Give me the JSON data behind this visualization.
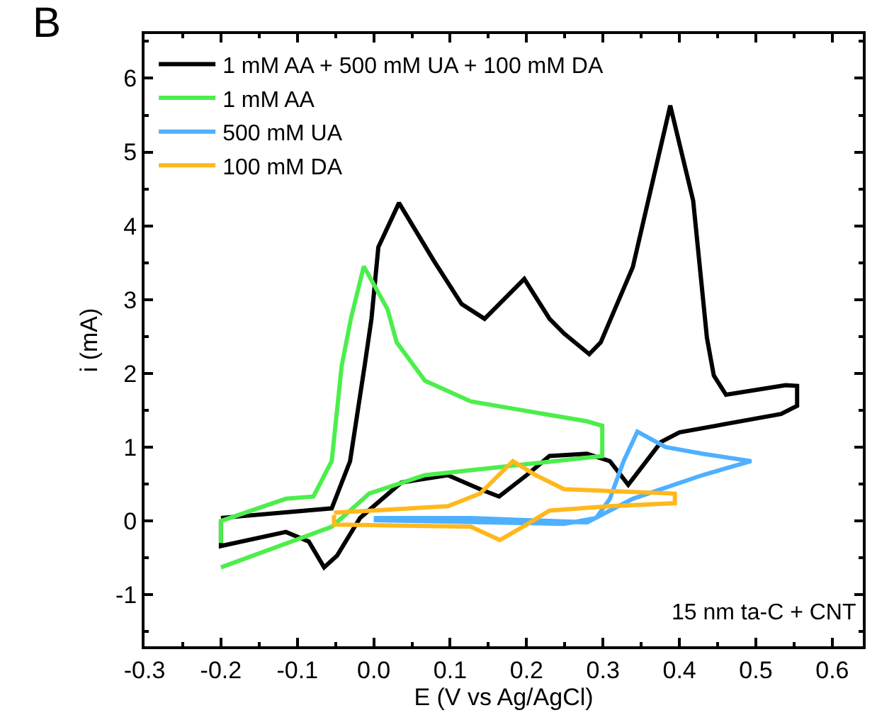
{
  "chart_data": {
    "type": "line",
    "xlabel": "E (V vs Ag/AgCl)",
    "ylabel": "i (mA)",
    "annotations": [
      "B",
      "15 nm ta-C + CNT"
    ],
    "xlim": [
      -0.3,
      0.64
    ],
    "ylim": [
      -1.7,
      6.6
    ],
    "xticks": [
      -0.3,
      -0.2,
      -0.1,
      {
        "value": 0,
        "label": "0.0"
      },
      0.1,
      0.2,
      0.3,
      0.4,
      0.5,
      0.6
    ],
    "yticks": [
      -1,
      0,
      1,
      2,
      3,
      4,
      5,
      6
    ],
    "legend": "top left",
    "marker": "none",
    "line_style": "solid",
    "series": [
      {
        "name": "1 mM AA + 500 mM UA + 100 mM DA",
        "color": "#000000",
        "x": [
          -0.2,
          -0.055,
          -0.031,
          -0.012,
          -0.003,
          0.006,
          0.033,
          0.079,
          0.115,
          0.145,
          0.197,
          0.23,
          0.249,
          0.282,
          0.297,
          0.339,
          0.388,
          0.418,
          0.436,
          0.445,
          0.461,
          0.539,
          0.554,
          0.554,
          0.533,
          0.4,
          0.376,
          0.333,
          0.309,
          0.279,
          0.23,
          0.2,
          0.164,
          0.139,
          0.097,
          0.036,
          -0.018,
          -0.048,
          -0.065,
          -0.085,
          -0.115,
          -0.2,
          -0.2
        ],
        "values": [
          0.04,
          0.17,
          0.81,
          2.1,
          2.74,
          3.71,
          4.31,
          3.52,
          2.94,
          2.74,
          3.28,
          2.74,
          2.54,
          2.26,
          2.42,
          3.44,
          5.63,
          4.34,
          2.48,
          1.97,
          1.71,
          1.84,
          1.83,
          1.56,
          1.45,
          1.2,
          1.07,
          0.49,
          0.81,
          0.91,
          0.88,
          0.62,
          0.33,
          0.43,
          0.62,
          0.52,
          0.04,
          -0.47,
          -0.63,
          -0.28,
          -0.15,
          -0.34,
          0.0
        ]
      },
      {
        "name": "1 mM AA",
        "color": "#4cee4c",
        "x": [
          -0.2,
          -0.055,
          -0.006,
          0.067,
          0.299,
          0.299,
          0.279,
          0.127,
          0.067,
          0.03,
          0.018,
          -0.013,
          -0.03,
          -0.042,
          -0.055,
          -0.079,
          -0.115,
          -0.2,
          -0.2
        ],
        "values": [
          -0.63,
          -0.08,
          0.37,
          0.62,
          0.88,
          1.29,
          1.35,
          1.62,
          1.9,
          2.42,
          2.87,
          3.45,
          2.74,
          2.1,
          0.81,
          0.33,
          0.3,
          0.0,
          -0.3
        ]
      },
      {
        "name": "500 mM UA",
        "color": "#4fb0ff",
        "x": [
          0.0,
          0.249,
          0.291,
          0.309,
          0.327,
          0.345,
          0.382,
          0.43,
          0.494,
          0.43,
          0.339,
          0.279,
          0.127,
          0.0
        ],
        "values": [
          0.01,
          -0.04,
          0.04,
          0.3,
          0.81,
          1.21,
          1.0,
          0.91,
          0.81,
          0.62,
          0.3,
          -0.02,
          0.04,
          0.04
        ]
      },
      {
        "name": "100 mM DA",
        "color": "#ffb81c",
        "x": [
          -0.052,
          0.097,
          0.139,
          0.182,
          0.212,
          0.249,
          0.394,
          0.394,
          0.309,
          0.23,
          0.2,
          0.165,
          0.127,
          -0.052,
          -0.052
        ],
        "values": [
          0.11,
          0.2,
          0.37,
          0.81,
          0.62,
          0.43,
          0.37,
          0.24,
          0.2,
          0.14,
          -0.05,
          -0.26,
          -0.08,
          -0.05,
          0.08
        ]
      }
    ]
  }
}
